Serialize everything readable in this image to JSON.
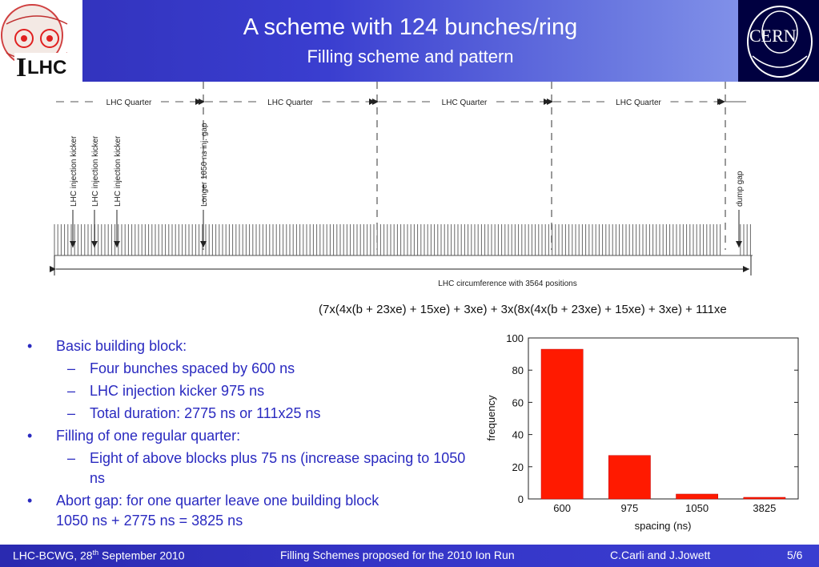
{
  "header": {
    "title": "A scheme with 124 bunches/ring",
    "subtitle": "Filling scheme and pattern",
    "logo_left_text": "LHC",
    "logo_right_text": "CERN"
  },
  "scheme": {
    "quarter_label": "LHC Quarter",
    "injection_kicker_label": "LHC injection kicker",
    "longer_gap_label": "Longer 1050 ns inj. gap",
    "dump_gap_label": "dump gap",
    "circumference_label": "LHC circumference with 3564 positions",
    "formula": "(7x(4x(b + 23xe) + 15xe) + 3xe) + 3x(8x(4x(b + 23xe) + 15xe) + 3xe) + 111xe"
  },
  "bullets": {
    "b1": "Basic building block:",
    "b1_1": "Four bunches spaced by 600 ns",
    "b1_2": "LHC injection kicker 975 ns",
    "b1_3": "Total duration: 2775 ns or 111x25 ns",
    "b2": "Filling of one regular quarter:",
    "b2_1": "Eight of above blocks plus 75 ns (increase spacing to 1050 ns",
    "b3_line1": "Abort gap: for one quarter leave one building block",
    "b3_line2": "1050 ns + 2775 ns = 3825 ns"
  },
  "chart_data": {
    "type": "bar",
    "categories": [
      "600",
      "975",
      "1050",
      "3825"
    ],
    "values": [
      93,
      27,
      3,
      1
    ],
    "xlabel": "spacing (ns)",
    "ylabel": "frequency",
    "ylim": [
      0,
      100
    ],
    "yticks": [
      "0",
      "20",
      "40",
      "60",
      "80",
      "100"
    ],
    "bar_color": "#ff1a00",
    "grid": false
  },
  "footer": {
    "left_pre": "LHC-BCWG, 28",
    "left_sup": "th",
    "left_post": " September 2010",
    "center": "Filling Schemes proposed for the 2010 Ion Run",
    "authors": "C.Carli and J.Jowett",
    "page": "5/6"
  },
  "colors": {
    "title_bar": "#3a3ed0",
    "bullet_text": "#2a2ac0",
    "bar": "#ff1a00"
  }
}
